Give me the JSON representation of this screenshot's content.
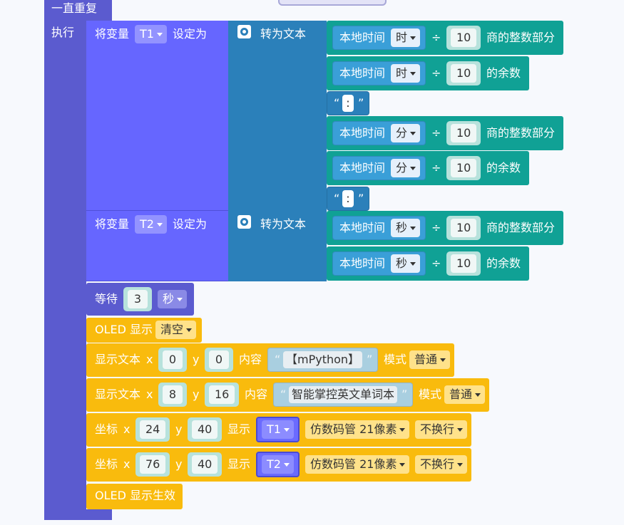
{
  "loop": {
    "label": "一直重复",
    "do": "执行"
  },
  "set_blocks": [
    {
      "set": "将变量",
      "var": "T1",
      "to": "设定为",
      "convert": "转为文本",
      "parts": [
        {
          "source": "本地时间",
          "unit": "时",
          "op": "÷",
          "divisor": 10,
          "result": "商的整数部分"
        },
        {
          "source": "本地时间",
          "unit": "时",
          "op": "÷",
          "divisor": 10,
          "result": "的余数"
        },
        {
          "open": "“",
          "text": ":",
          "close": "”"
        },
        {
          "source": "本地时间",
          "unit": "分",
          "op": "÷",
          "divisor": 10,
          "result": "商的整数部分"
        },
        {
          "source": "本地时间",
          "unit": "分",
          "op": "÷",
          "divisor": 10,
          "result": "的余数"
        },
        {
          "open": "“",
          "text": ":",
          "close": "”"
        }
      ]
    },
    {
      "set": "将变量",
      "var": "T2",
      "to": "设定为",
      "convert": "转为文本",
      "parts": [
        {
          "source": "本地时间",
          "unit": "秒",
          "op": "÷",
          "divisor": 10,
          "result": "商的整数部分"
        },
        {
          "source": "本地时间",
          "unit": "秒",
          "op": "÷",
          "divisor": 10,
          "result": "的余数"
        }
      ]
    }
  ],
  "wait": {
    "label": "等待",
    "value": 3,
    "unit": "秒"
  },
  "oled_clear": {
    "label": "OLED 显示",
    "option": "清空"
  },
  "show_text": [
    {
      "label": "显示文本",
      "x_label": "x",
      "x": 0,
      "y_label": "y",
      "y": 0,
      "content_label": "内容",
      "open": "“",
      "text": "【mPython】",
      "close": "”",
      "mode_label": "模式",
      "mode": "普通"
    },
    {
      "label": "显示文本",
      "x_label": "x",
      "x": 8,
      "y_label": "y",
      "y": 16,
      "content_label": "内容",
      "open": "“",
      "text": "智能掌控英文单词本",
      "close": "”",
      "mode_label": "模式",
      "mode": "普通"
    }
  ],
  "coords": [
    {
      "label": "坐标",
      "x_label": "x",
      "x": 24,
      "y_label": "y",
      "y": 40,
      "show_label": "显示",
      "var": "T1",
      "font": "仿数码管 21像素",
      "wrap": "不换行"
    },
    {
      "label": "坐标",
      "x_label": "x",
      "x": 76,
      "y_label": "y",
      "y": 40,
      "show_label": "显示",
      "var": "T2",
      "font": "仿数码管 21像素",
      "wrap": "不换行"
    }
  ],
  "oled_refresh": {
    "label": "OLED 显示生效"
  }
}
